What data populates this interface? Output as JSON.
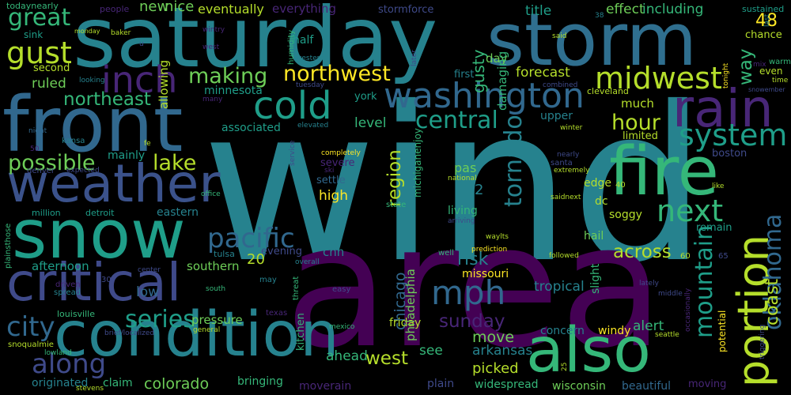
{
  "palette": {
    "background": "#000000",
    "dark_purple": "#440154",
    "purple": "#482677",
    "indigo": "#3f4a8a",
    "blue": "#31688e",
    "teal_blue": "#26828e",
    "teal": "#1f9e89",
    "green": "#35b779",
    "light_green": "#6ece58",
    "yellow_green": "#b5de2b",
    "yellow": "#fde725"
  },
  "words": {
    "wind": "wind",
    "area": "area",
    "saturday": "saturday",
    "storm": "storm",
    "front": "front",
    "snow": "snow",
    "condition": "condition",
    "fire": "fire",
    "also": "also",
    "weather": "weather",
    "critical": "critical",
    "rain": "rain",
    "portion": "portion",
    "cold": "cold",
    "washington": "washington",
    "inch": "inch",
    "gust": "gust",
    "great": "great",
    "midwest": "midwest",
    "northwest": "northwest",
    "making": "making",
    "northeast": "northeast",
    "system": "system",
    "next": "next",
    "oklahoma": "oklahoma",
    "mountain": "mountain",
    "coast": "coast",
    "mph": "mph",
    "city": "city",
    "along": "along",
    "series": "series",
    "pacific": "pacific",
    "possible": "possible",
    "lake": "lake",
    "tornado": "tornado",
    "region": "region",
    "central": "central",
    "hour": "hour",
    "sunday": "sunday",
    "across": "across",
    "colorado": "colorado",
    "west": "west",
    "new": "new",
    "nice": "nice",
    "eventually": "eventually",
    "everything": "everything",
    "stormforce": "stormforce",
    "effect": "effect",
    "including": "including",
    "title": "title",
    "people": "people",
    "sustained": "sustained",
    "n48": "48",
    "chance": "chance",
    "way": "way",
    "gusty": "gusty",
    "day": "day",
    "first": "first",
    "forecast": "forecast",
    "ruled": "ruled",
    "second": "second",
    "sink": "sink",
    "half": "half",
    "minnesota": "minnesota",
    "allowing": "allowing",
    "damaging": "damaging",
    "much": "much",
    "upper": "upper",
    "limited": "limited",
    "level": "level",
    "associated": "associated",
    "york": "york",
    "boston": "boston",
    "mainly": "mainly",
    "severe": "severe",
    "settle": "settle",
    "high": "high",
    "pas": "pas",
    "n2": "2",
    "edge": "edge",
    "dc": "dc",
    "soggy": "soggy",
    "living": "living",
    "eastern": "eastern",
    "remain": "remain",
    "hail": "hail",
    "cnn": "cnn",
    "risk": "risk",
    "missouri": "missouri",
    "chicago": "chicago",
    "philadelphia": "philadelphia",
    "n20": "20",
    "southern": "southern",
    "afternoon": "afternoon",
    "evening": "evening",
    "low": "low",
    "tropical": "tropical",
    "slight": "slight",
    "alert": "alert",
    "pressure": "pressure",
    "friday": "friday",
    "move": "move",
    "concern": "concern",
    "windy": "windy",
    "kitchen": "kitchen",
    "arkansas": "arkansas",
    "see": "see",
    "ahead": "ahead",
    "picked": "picked",
    "originated": "originated",
    "claim": "claim",
    "bringing": "bringing",
    "moverain": "moverain",
    "plain": "plain",
    "widespread": "widespread",
    "wisconsin": "wisconsin",
    "beautiful": "beautiful",
    "moving": "moving",
    "potential": "potential",
    "detroit": "detroit",
    "million": "million",
    "tulsa": "tulsa",
    "louisville": "louisville",
    "spread": "spread",
    "snoqualmie": "snoqualmie",
    "lowland": "lowland",
    "stevens": "stevens",
    "denver": "denver",
    "expected": "expected",
    "kansa": "kansa",
    "todaynearly": "todaynearly",
    "plainsthose": "plainsthose",
    "cleveland": "cleveland",
    "combined": "combined",
    "even": "even",
    "time": "time",
    "snowember": "snowember",
    "warm": "warm",
    "tonight": "tonight",
    "mix": "mix",
    "later": "later",
    "said": "said",
    "service": "service",
    "michiganenjoy": "michiganenjoy",
    "national": "national",
    "extremely": "extremely",
    "santa": "santa",
    "n40": "40",
    "saidnext": "saidnext",
    "like": "like",
    "office": "office",
    "state": "state",
    "arriving": "arriving",
    "ski": "ski",
    "completely": "completely",
    "service2": "service",
    "n50": "50",
    "night": "night",
    "n30": "30",
    "n60": "60",
    "n65": "65",
    "waylts": "waylts",
    "prediction": "prediction",
    "followed": "followed",
    "lately": "lately",
    "middle": "middle",
    "seattle": "seattle",
    "occasionally": "occasionally",
    "triggering": "triggering",
    "well": "well",
    "mexico": "mexico",
    "general": "general",
    "texas": "texas",
    "easy": "easy",
    "threat": "threat",
    "south": "south",
    "center": "center",
    "brief_localized": "brief/localized",
    "driven": "driven",
    "may": "may",
    "overall": "overall",
    "western": "western",
    "humidity": "humidity",
    "tuesday": "tuesday",
    "wintry": "wintry",
    "baker": "baker",
    "monday": "monday",
    "looking": "looking",
    "fe": "fe",
    "elevated": "elevated",
    "many": "many",
    "last": "last",
    "winter": "winter",
    "nearly": "nearly",
    "n25": "25",
    "n38": "38",
    "west2": "west",
    "u": "u"
  }
}
